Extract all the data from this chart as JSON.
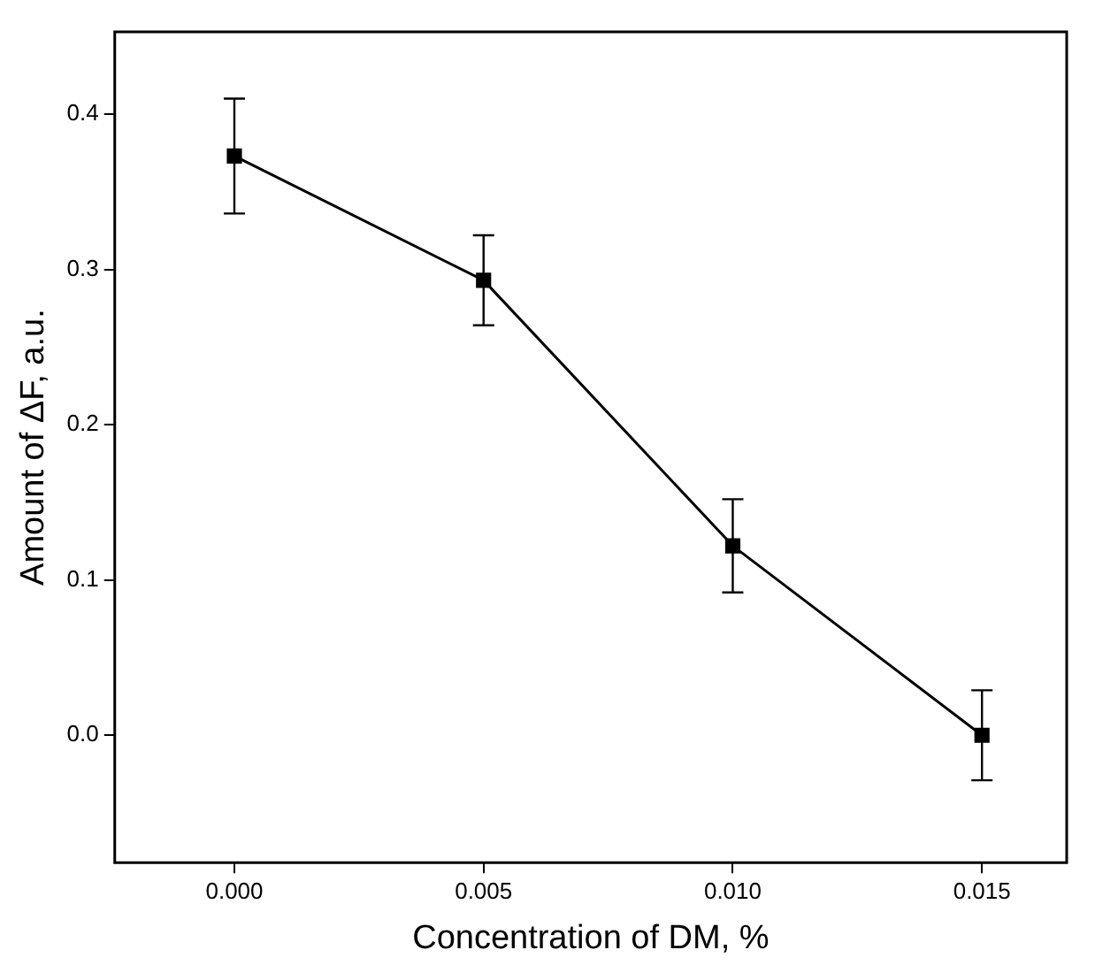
{
  "chart_data": {
    "type": "line",
    "xlabel": "Concentration of DM, %",
    "ylabel": "Amount of ΔF, a.u.",
    "x": [
      0,
      0.005,
      0.01,
      0.015
    ],
    "series": [
      {
        "color": "#000000",
        "values": [
          0.373,
          0.293,
          0.122,
          0.0
        ],
        "errors": [
          0.037,
          0.029,
          0.03,
          0.029
        ]
      }
    ],
    "xlim": [
      -0.0024,
      0.0167
    ],
    "xticks": [
      {
        "value": 0,
        "label": "0.000"
      },
      {
        "value": 0.005,
        "label": "0.005"
      },
      {
        "value": 0.01,
        "label": "0.010"
      },
      {
        "value": 0.015,
        "label": "0.015"
      }
    ],
    "ylim": [
      -0.082,
      0.453
    ],
    "yticks": [
      {
        "value": 0,
        "label": "0.0"
      },
      {
        "value": 0.1,
        "label": "0.1"
      },
      {
        "value": 0.2,
        "label": "0.2"
      },
      {
        "value": 0.3,
        "label": "0.3"
      },
      {
        "value": 0.4,
        "label": "0.4"
      }
    ],
    "marker": "square",
    "grid": false,
    "legend": false
  }
}
